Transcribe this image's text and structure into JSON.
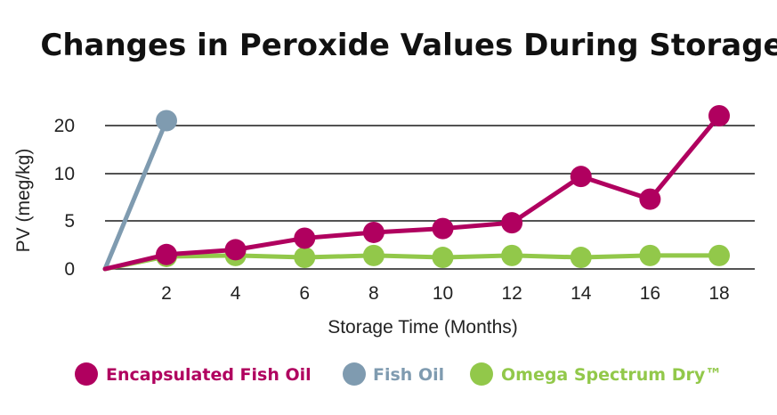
{
  "chart_data": {
    "type": "line",
    "title": "Changes in Peroxide Values During Storage",
    "xlabel": "Storage Time (Months)",
    "ylabel": "PV (meg/kg)",
    "x_ticks": [
      "2",
      "4",
      "6",
      "8",
      "10",
      "12",
      "14",
      "16",
      "18"
    ],
    "y_ticks": [
      {
        "value": 0,
        "label": "0"
      },
      {
        "value": 5,
        "label": "5"
      },
      {
        "value": 10,
        "label": "10"
      },
      {
        "value": 20,
        "label": "20"
      }
    ],
    "grid": true,
    "legend_position": "bottom",
    "series": [
      {
        "name": "Encapsulated Fish Oil",
        "color": "#b0005f",
        "x": [
          0,
          2,
          4,
          6,
          8,
          10,
          12,
          14,
          16,
          18
        ],
        "y": [
          0,
          1.5,
          2,
          3.2,
          3.8,
          4.2,
          4.8,
          9.7,
          7.3,
          21
        ]
      },
      {
        "name": "Fish Oil",
        "color": "#7f9bb0",
        "x": [
          0,
          2
        ],
        "y": [
          0,
          20.5
        ]
      },
      {
        "name": "Omega Spectrum Dry™",
        "color": "#92c84a",
        "x": [
          0,
          2,
          4,
          6,
          8,
          10,
          12,
          14,
          16,
          18
        ],
        "y": [
          0,
          1.3,
          1.4,
          1.2,
          1.4,
          1.2,
          1.4,
          1.2,
          1.4,
          1.4
        ]
      }
    ]
  }
}
